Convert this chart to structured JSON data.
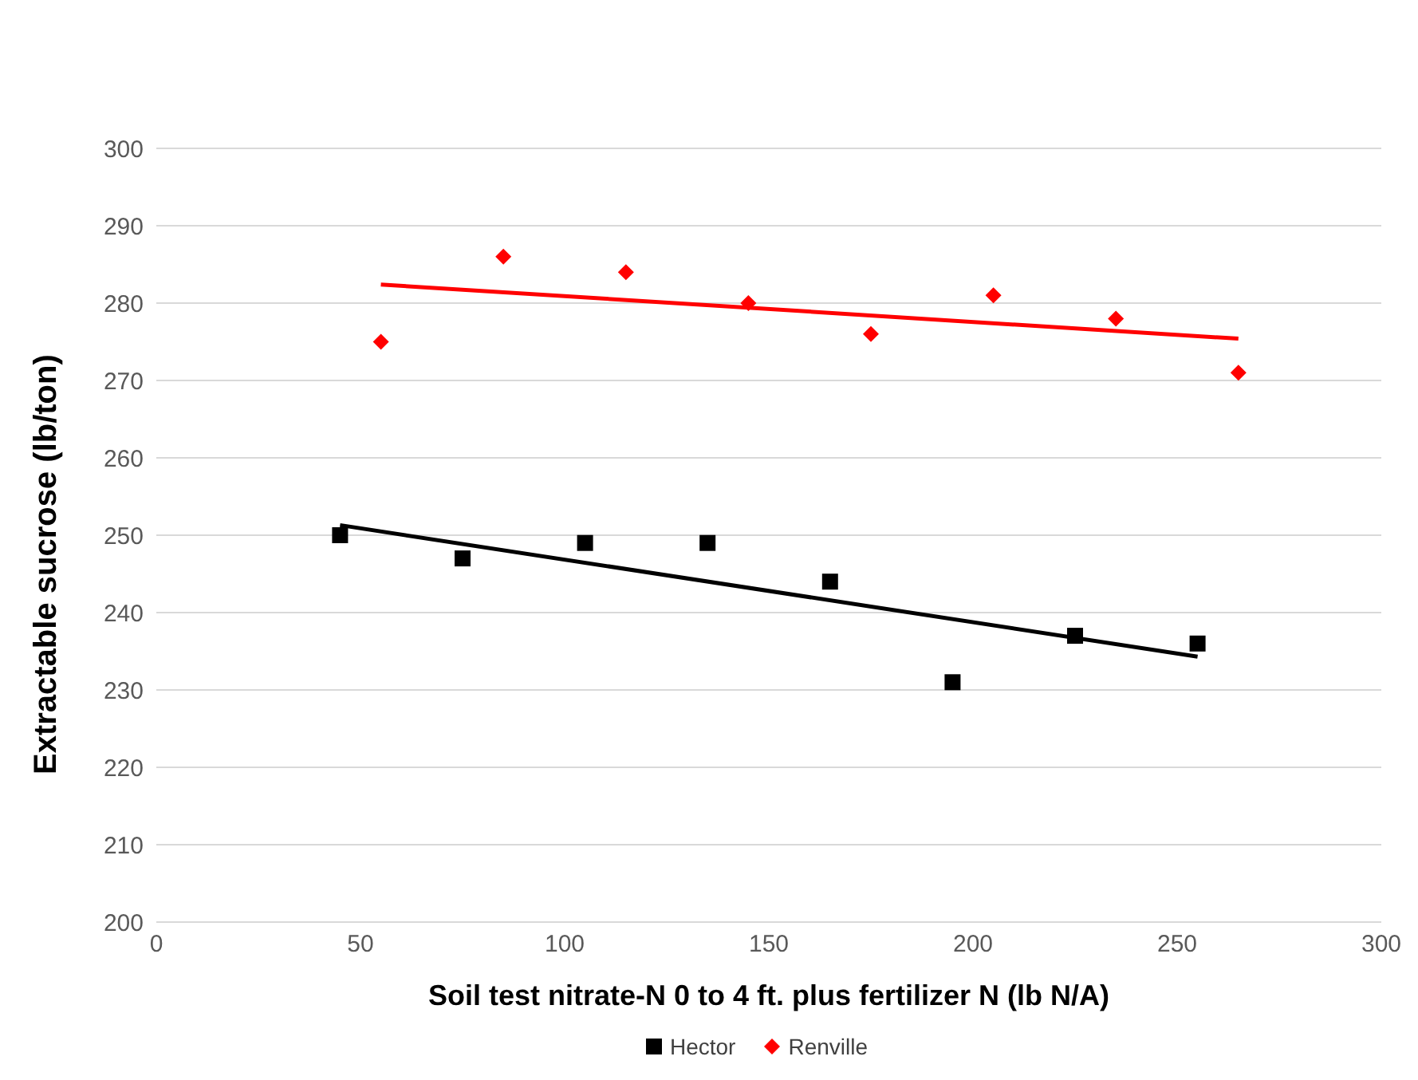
{
  "chart_data": {
    "type": "scatter",
    "xlabel": "Soil test nitrate-N 0 to 4 ft. plus fertilizer N (lb N/A)",
    "ylabel": "Extractable sucrose (lb/ton)",
    "xlim": [
      0,
      300
    ],
    "xticks": [
      0,
      50,
      100,
      150,
      200,
      250,
      300
    ],
    "ylim": [
      200,
      300
    ],
    "yticks": [
      200,
      210,
      220,
      230,
      240,
      250,
      260,
      270,
      280,
      290,
      300
    ],
    "grid": "y",
    "legend": "bottom",
    "series": [
      {
        "name": "Hector",
        "color": "#000000",
        "marker": "square",
        "x": [
          45,
          75,
          105,
          135,
          165,
          195,
          225,
          255
        ],
        "values": [
          250,
          247,
          249,
          249,
          244,
          231,
          237,
          236
        ]
      },
      {
        "name": "Renville",
        "color": "#ff0000",
        "marker": "diamond",
        "x": [
          55,
          85,
          115,
          145,
          175,
          205,
          235,
          265
        ],
        "values": [
          275,
          286,
          284,
          280,
          276,
          281,
          278,
          271
        ]
      },
      {
        "type": "line",
        "color": "#000000",
        "x": [
          45,
          255
        ],
        "values": [
          251.3,
          234.3
        ]
      },
      {
        "type": "line",
        "color": "#ff0000",
        "x": [
          55,
          265
        ],
        "values": [
          282.4,
          275.4
        ]
      }
    ]
  }
}
